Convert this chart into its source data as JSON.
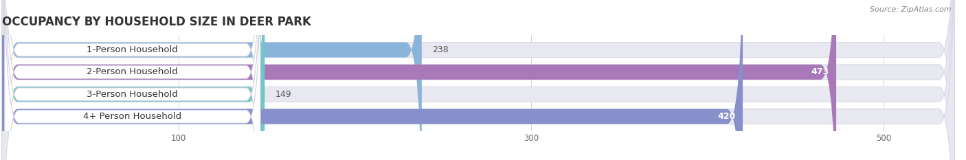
{
  "title": "OCCUPANCY BY HOUSEHOLD SIZE IN DEER PARK",
  "source": "Source: ZipAtlas.com",
  "categories": [
    "1-Person Household",
    "2-Person Household",
    "3-Person Household",
    "4+ Person Household"
  ],
  "values": [
    238,
    473,
    149,
    420
  ],
  "bar_colors": [
    "#8ab4d9",
    "#a878b8",
    "#6ec8c8",
    "#8890cc"
  ],
  "label_colors": [
    "#444444",
    "#ffffff",
    "#444444",
    "#ffffff"
  ],
  "xlim": [
    0,
    540
  ],
  "xticks": [
    100,
    300,
    500
  ],
  "bg_color": "#ffffff",
  "bar_bg_color": "#e8e8f0",
  "title_fontsize": 12,
  "label_fontsize": 9.5,
  "value_fontsize": 9,
  "source_fontsize": 8
}
